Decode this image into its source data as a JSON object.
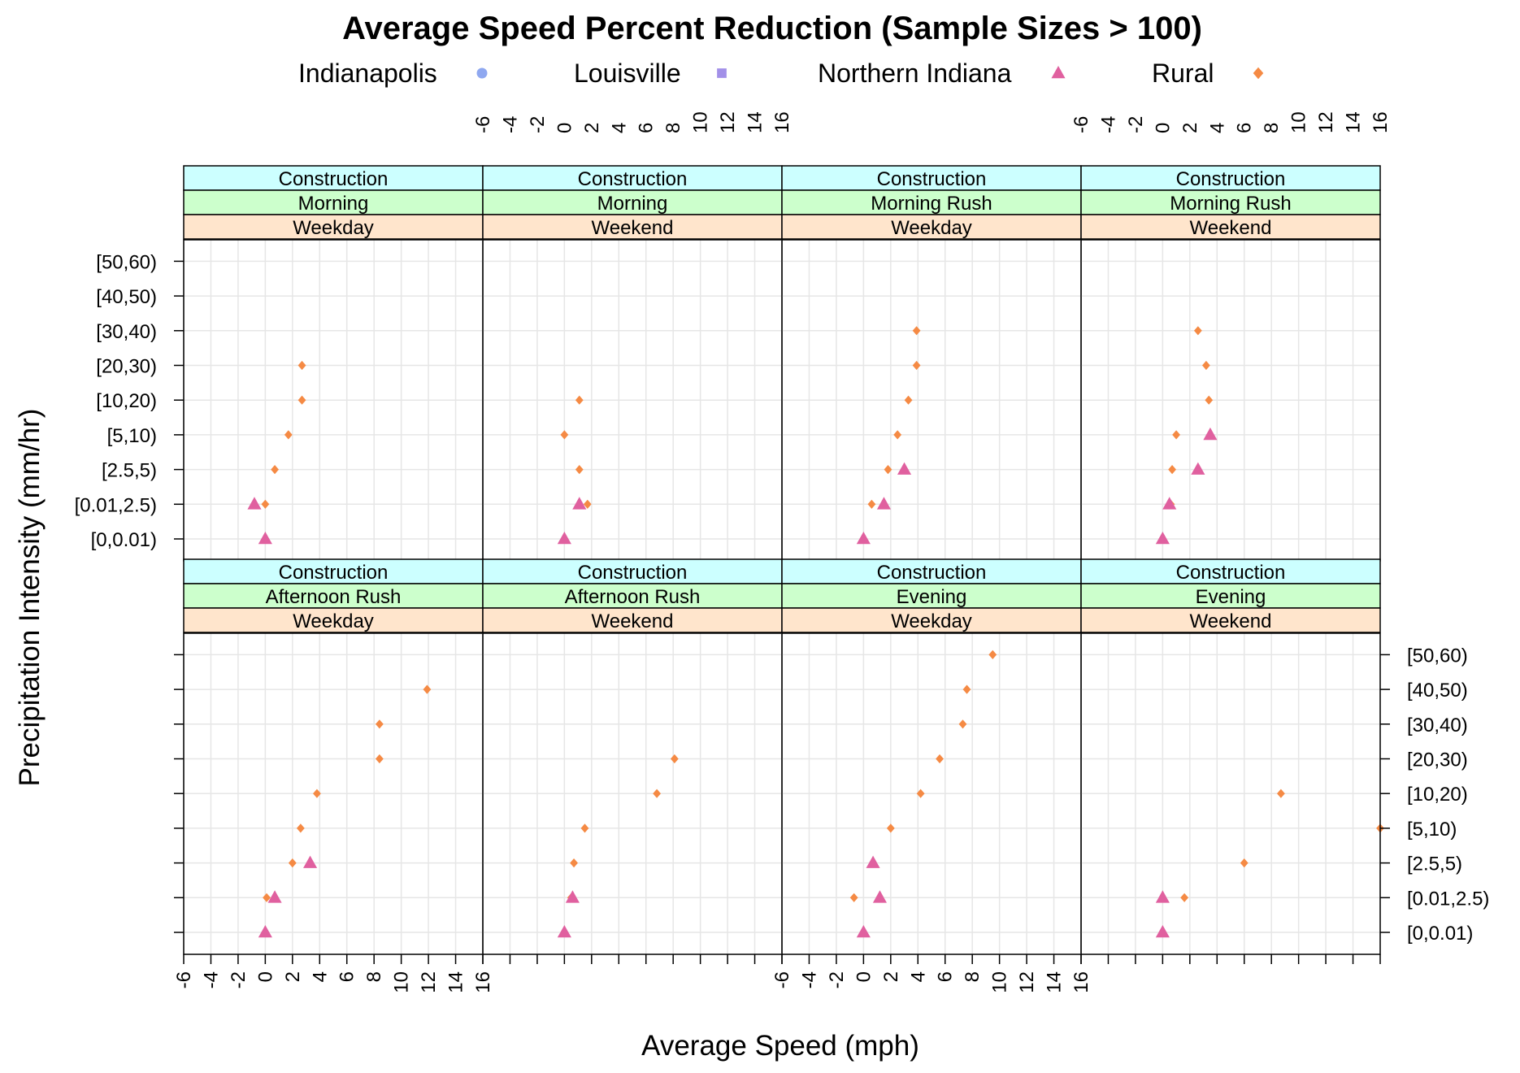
{
  "chart_data": {
    "type": "scatter",
    "title": "Average Speed Percent Reduction (Sample Sizes > 100)",
    "xlabel": "Average Speed (mph)",
    "ylabel": "Precipitation Intensity (mm/hr)",
    "xlim": [
      -6,
      16
    ],
    "x_ticks": [
      -6,
      -4,
      -2,
      0,
      2,
      4,
      6,
      8,
      10,
      12,
      14,
      16
    ],
    "y_categories": [
      "[0,0.01)",
      "[0.01,2.5)",
      "[2.5,5)",
      "[5,10)",
      "[10,20)",
      "[20,30)",
      "[30,40)",
      "[40,50)",
      "[50,60)"
    ],
    "grid": true,
    "legend_position": "top",
    "legend": [
      {
        "name": "Indianapolis",
        "symbol": "circle",
        "color": "#8FA8F0"
      },
      {
        "name": "Louisville",
        "symbol": "square",
        "color": "#A290E8"
      },
      {
        "name": "Northern Indiana",
        "symbol": "triangle",
        "color": "#E0609F"
      },
      {
        "name": "Rural",
        "symbol": "diamond",
        "color": "#F58A44"
      }
    ],
    "strip_colors": {
      "level1": "#CCFFFF",
      "level2": "#CCFFCC",
      "level3": "#FFE5CC"
    },
    "panels": [
      {
        "labels": [
          "Construction",
          "Morning",
          "Weekday"
        ],
        "series": [
          {
            "name": "Rural",
            "points": [
              [
                0,
                0
              ],
              [
                0,
                1
              ],
              [
                0.7,
                2
              ],
              [
                1.7,
                3
              ],
              [
                2.7,
                4
              ],
              [
                2.7,
                5
              ]
            ]
          },
          {
            "name": "Northern Indiana",
            "points": [
              [
                0,
                0
              ],
              [
                -0.8,
                1
              ]
            ]
          }
        ]
      },
      {
        "labels": [
          "Construction",
          "Morning",
          "Weekend"
        ],
        "series": [
          {
            "name": "Rural",
            "points": [
              [
                0,
                0
              ],
              [
                1.7,
                1
              ],
              [
                1.1,
                2
              ],
              [
                0,
                3
              ],
              [
                1.1,
                4
              ]
            ]
          },
          {
            "name": "Northern Indiana",
            "points": [
              [
                0,
                0
              ],
              [
                1.1,
                1
              ]
            ]
          }
        ]
      },
      {
        "labels": [
          "Construction",
          "Morning Rush",
          "Weekday"
        ],
        "series": [
          {
            "name": "Rural",
            "points": [
              [
                0,
                0
              ],
              [
                0.6,
                1
              ],
              [
                1.8,
                2
              ],
              [
                2.5,
                3
              ],
              [
                3.3,
                4
              ],
              [
                3.9,
                5
              ],
              [
                3.9,
                6
              ]
            ]
          },
          {
            "name": "Northern Indiana",
            "points": [
              [
                0,
                0
              ],
              [
                1.5,
                1
              ],
              [
                3,
                2
              ]
            ]
          }
        ]
      },
      {
        "labels": [
          "Construction",
          "Morning Rush",
          "Weekend"
        ],
        "series": [
          {
            "name": "Rural",
            "points": [
              [
                0,
                0
              ],
              [
                0.6,
                1
              ],
              [
                0.7,
                2
              ],
              [
                1,
                3
              ],
              [
                3.4,
                4
              ],
              [
                3.2,
                5
              ],
              [
                2.6,
                6
              ]
            ]
          },
          {
            "name": "Northern Indiana",
            "points": [
              [
                0,
                0
              ],
              [
                0.5,
                1
              ],
              [
                2.6,
                2
              ],
              [
                3.5,
                3
              ]
            ]
          }
        ]
      },
      {
        "labels": [
          "Construction",
          "Afternoon Rush",
          "Weekday"
        ],
        "series": [
          {
            "name": "Rural",
            "points": [
              [
                0,
                0
              ],
              [
                0.1,
                1
              ],
              [
                2,
                2
              ],
              [
                2.6,
                3
              ],
              [
                3.8,
                4
              ],
              [
                8.4,
                5
              ],
              [
                8.4,
                6
              ],
              [
                11.9,
                7
              ]
            ]
          },
          {
            "name": "Northern Indiana",
            "points": [
              [
                0,
                0
              ],
              [
                0.7,
                1
              ],
              [
                3.3,
                2
              ]
            ]
          }
        ]
      },
      {
        "labels": [
          "Construction",
          "Afternoon Rush",
          "Weekend"
        ],
        "series": [
          {
            "name": "Rural",
            "points": [
              [
                0,
                0
              ],
              [
                0.5,
                1
              ],
              [
                0.7,
                2
              ],
              [
                1.5,
                3
              ],
              [
                6.8,
                4
              ],
              [
                8.1,
                5
              ]
            ]
          },
          {
            "name": "Northern Indiana",
            "points": [
              [
                0,
                0
              ],
              [
                0.6,
                1
              ]
            ]
          }
        ]
      },
      {
        "labels": [
          "Construction",
          "Evening",
          "Weekday"
        ],
        "series": [
          {
            "name": "Rural",
            "points": [
              [
                0,
                0
              ],
              [
                -0.7,
                1
              ],
              [
                0.7,
                2
              ],
              [
                2,
                3
              ],
              [
                4.2,
                4
              ],
              [
                5.6,
                5
              ],
              [
                7.3,
                6
              ],
              [
                7.6,
                7
              ],
              [
                9.5,
                8
              ]
            ]
          },
          {
            "name": "Northern Indiana",
            "points": [
              [
                0,
                0
              ],
              [
                1.2,
                1
              ],
              [
                0.7,
                2
              ]
            ]
          }
        ]
      },
      {
        "labels": [
          "Construction",
          "Evening",
          "Weekend"
        ],
        "series": [
          {
            "name": "Rural",
            "points": [
              [
                0,
                0
              ],
              [
                1.6,
                1
              ],
              [
                6,
                2
              ],
              [
                16,
                3
              ],
              [
                8.7,
                4
              ]
            ]
          },
          {
            "name": "Northern Indiana",
            "points": [
              [
                0,
                0
              ],
              [
                0,
                1
              ]
            ]
          }
        ]
      }
    ]
  }
}
